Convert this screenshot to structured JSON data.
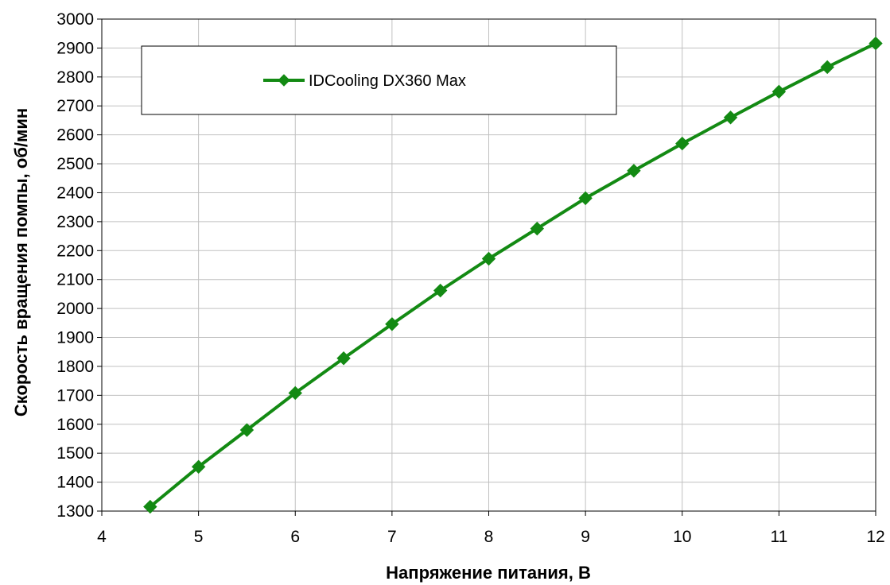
{
  "chart_data": {
    "type": "line",
    "title": "",
    "xlabel": "Напряжение питания, В",
    "ylabel": "Скорость вращения помпы, об/мин",
    "xlim": [
      4,
      12
    ],
    "ylim": [
      1300,
      3000
    ],
    "x_ticks": [
      4,
      5,
      6,
      7,
      8,
      9,
      10,
      11,
      12
    ],
    "y_ticks": [
      1300,
      1400,
      1500,
      1600,
      1700,
      1800,
      1900,
      2000,
      2100,
      2200,
      2300,
      2400,
      2500,
      2600,
      2700,
      2800,
      2900,
      3000
    ],
    "grid": true,
    "legend_position": "top-left",
    "series": [
      {
        "name": "IDCooling DX360 Max",
        "color": "#138a13",
        "marker": "diamond",
        "x": [
          4.5,
          5,
          5.5,
          6,
          6.5,
          7,
          7.5,
          8,
          8.5,
          9,
          9.5,
          10,
          10.5,
          11,
          11.5,
          12
        ],
        "y": [
          1315,
          1453,
          1580,
          1708,
          1828,
          1946,
          2062,
          2172,
          2276,
          2381,
          2476,
          2570,
          2660,
          2749,
          2834,
          2916
        ]
      }
    ]
  }
}
